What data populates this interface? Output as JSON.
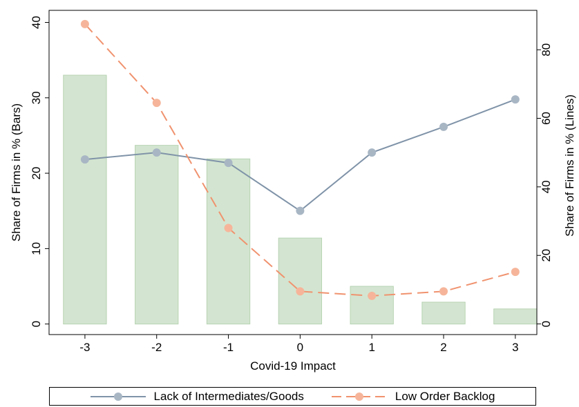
{
  "chart_data": {
    "type": "bar+line",
    "x": [
      -3,
      -2,
      -1,
      0,
      1,
      2,
      3
    ],
    "xlabel": "Covid-19 Impact",
    "xlim": [
      -3.5,
      3.3
    ],
    "bars": {
      "values": [
        33.0,
        23.7,
        21.9,
        11.4,
        5.0,
        2.9,
        2.0
      ],
      "color": "#d3e5d0",
      "edge_color": "#b7d3b2",
      "axis": "left"
    },
    "series": [
      {
        "name": "Lack of Intermediates/Goods",
        "values": [
          48,
          50,
          47,
          33,
          50,
          57.5,
          65.5
        ],
        "color": "#7f93a8",
        "marker_color": "#a8b6c4",
        "style": "solid",
        "axis": "right"
      },
      {
        "name": "Low Order Backlog",
        "values": [
          87.5,
          64.5,
          28,
          9.5,
          8.2,
          9.5,
          15.2
        ],
        "color": "#f0926e",
        "marker_color": "#f6b59a",
        "style": "dashed",
        "axis": "right"
      }
    ],
    "y_left": {
      "label": "Share of Firms in % (Bars)",
      "ticks": [
        0,
        10,
        20,
        30,
        40
      ],
      "lim": [
        -1.4,
        41.6
      ]
    },
    "y_right": {
      "label": "Share of Firms in % (Lines)",
      "ticks": [
        0,
        20,
        40,
        60,
        80
      ],
      "lim": [
        -3.1,
        91.5
      ]
    },
    "grid": false,
    "legend": "bottom"
  }
}
